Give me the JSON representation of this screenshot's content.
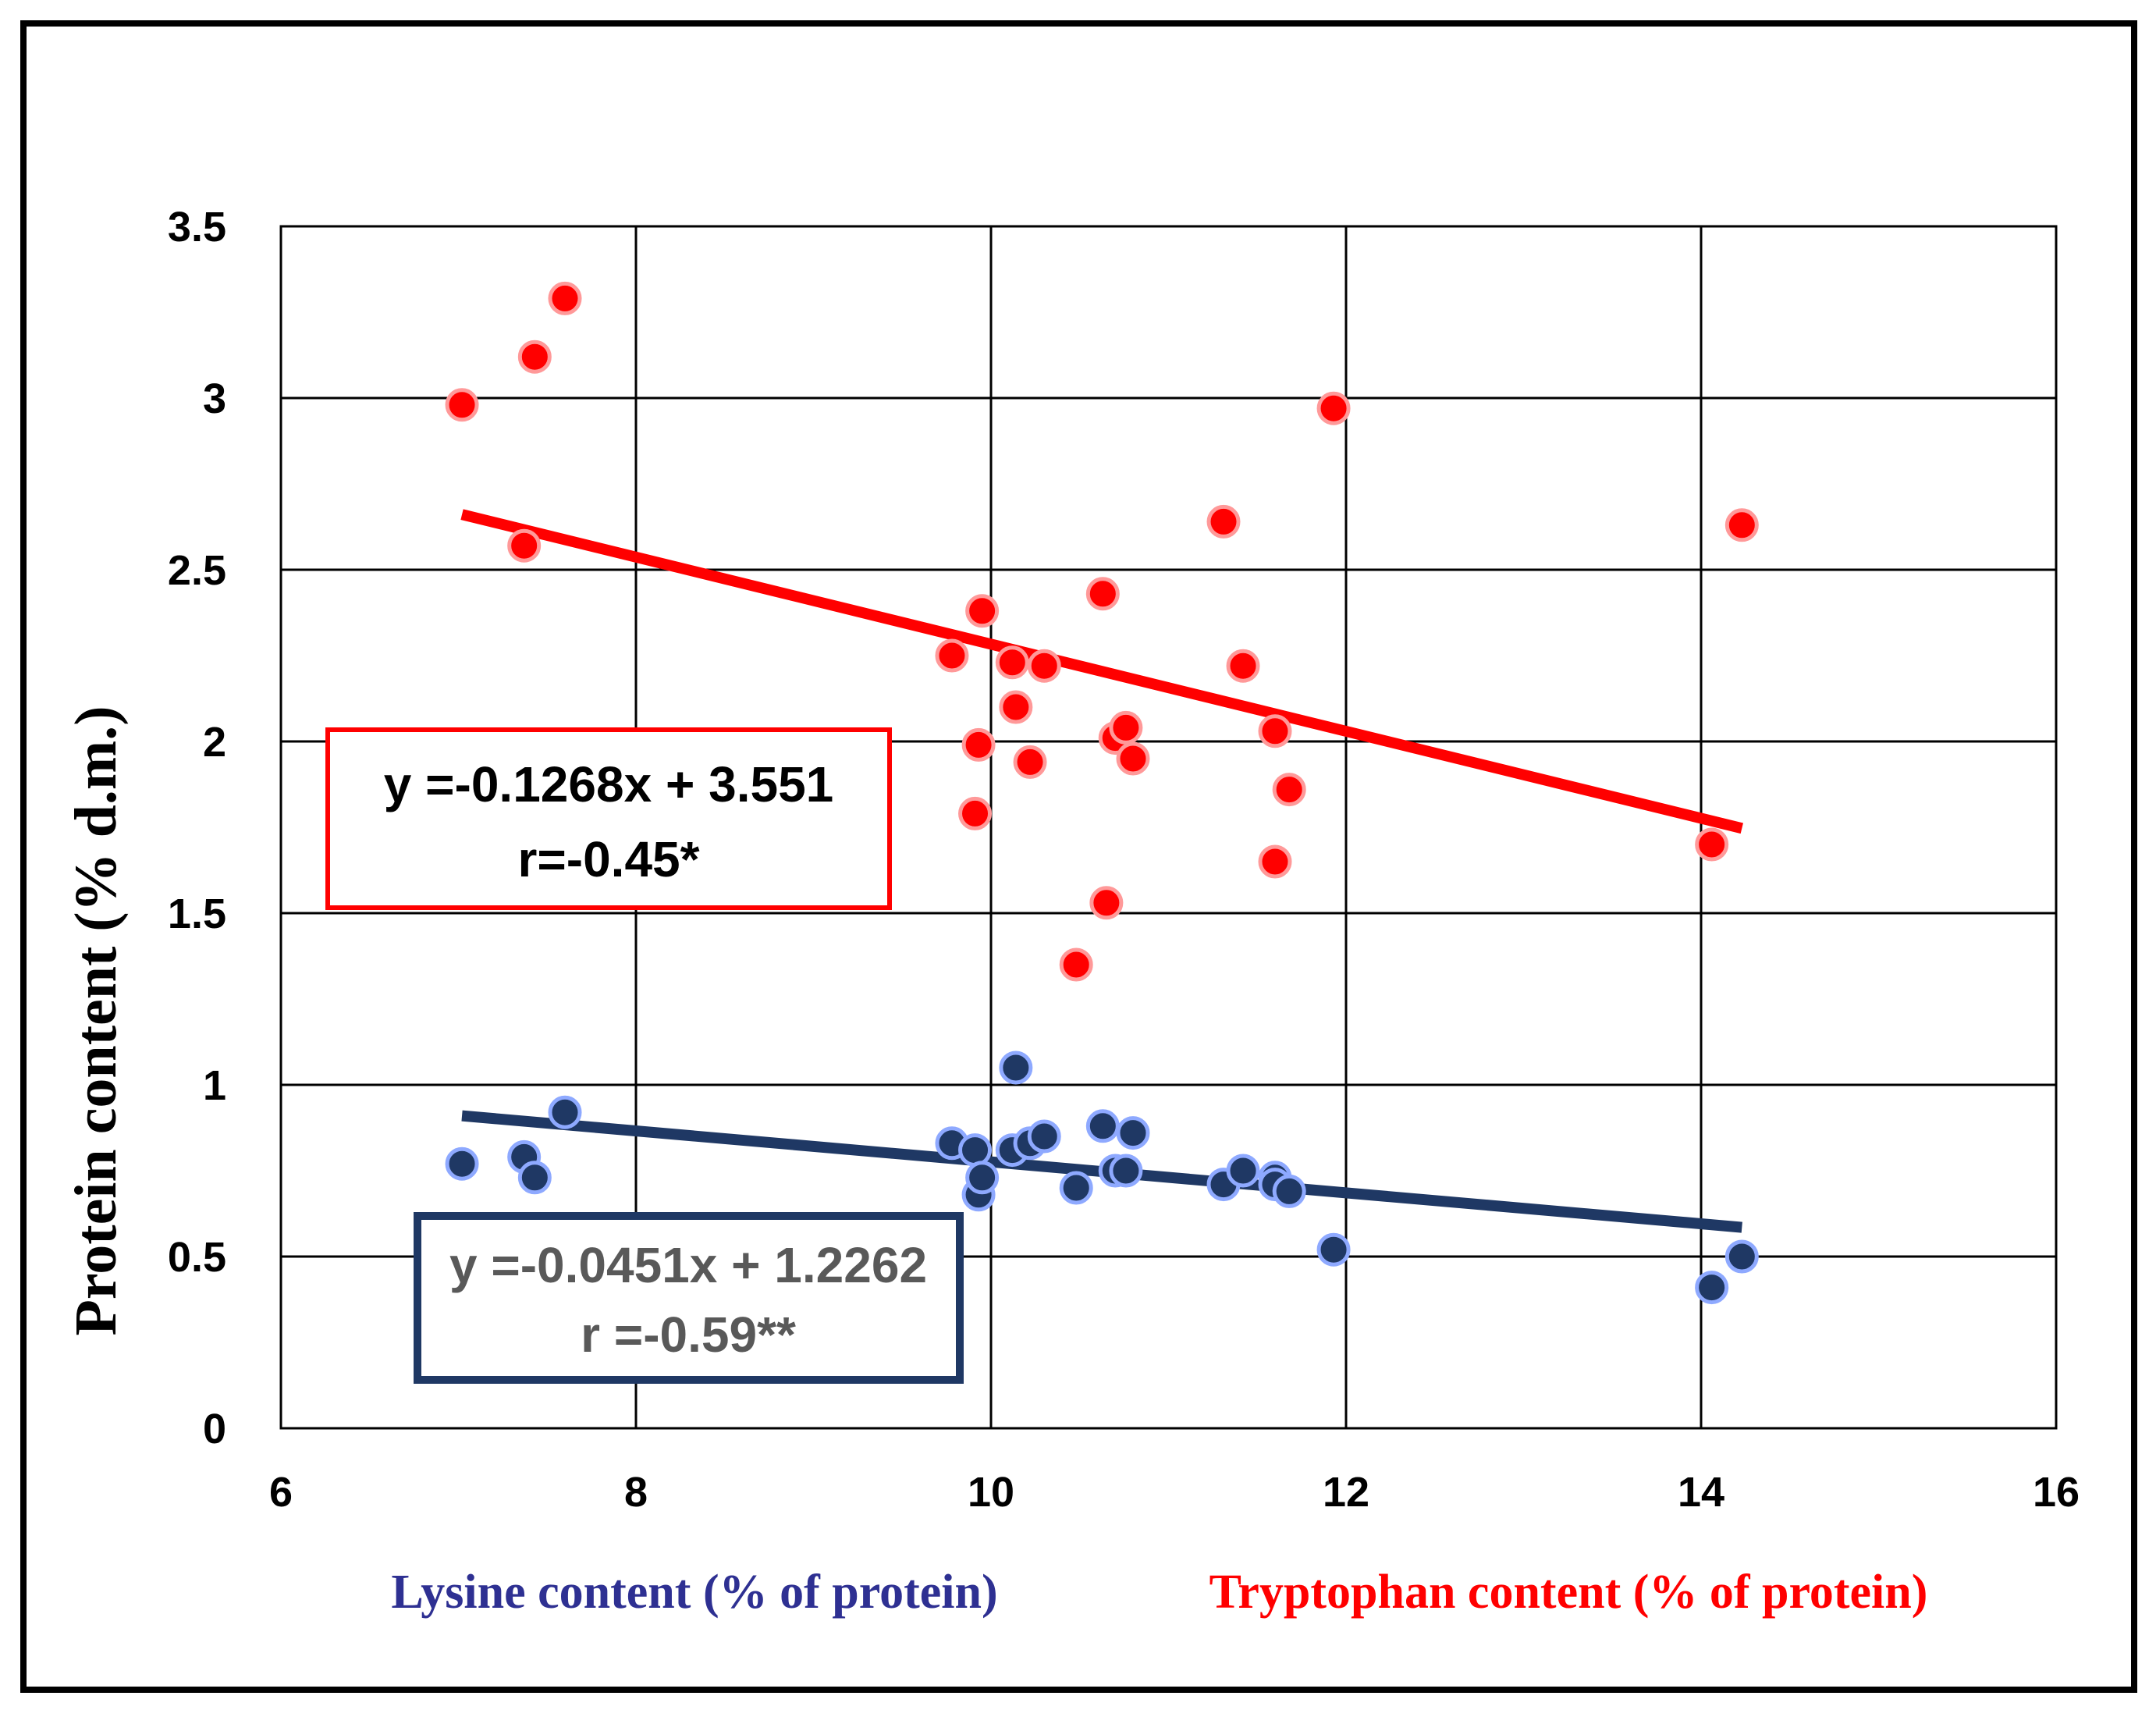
{
  "chart_data": {
    "type": "scatter",
    "ylabel": "Protein content (% d.m.)",
    "xlabels": [
      {
        "text": "Lysine content (% of protein)",
        "color": "#2e3092"
      },
      {
        "text": "Tryptophan content (% of protein)",
        "color": "#ff0000"
      }
    ],
    "xlim": [
      6,
      16
    ],
    "ylim": [
      0,
      3.5
    ],
    "x_ticks": [
      "6",
      "8",
      "10",
      "12",
      "14",
      "16"
    ],
    "y_ticks": [
      "0",
      "0.5",
      "1",
      "1.5",
      "2",
      "2.5",
      "3",
      "3.5"
    ],
    "grid": true,
    "series": [
      {
        "color": "#ff0000",
        "points": [
          [
            7.02,
            2.98
          ],
          [
            7.43,
            3.12
          ],
          [
            7.6,
            3.29
          ],
          [
            7.37,
            2.57
          ],
          [
            9.78,
            2.25
          ],
          [
            9.95,
            2.38
          ],
          [
            9.93,
            1.99
          ],
          [
            9.91,
            1.79
          ],
          [
            10.12,
            2.23
          ],
          [
            10.3,
            2.22
          ],
          [
            10.14,
            2.1
          ],
          [
            10.22,
            1.94
          ],
          [
            10.63,
            2.43
          ],
          [
            10.7,
            2.01
          ],
          [
            10.76,
            2.04
          ],
          [
            10.8,
            1.95
          ],
          [
            10.65,
            1.53
          ],
          [
            10.48,
            1.35
          ],
          [
            11.31,
            2.64
          ],
          [
            11.42,
            2.22
          ],
          [
            11.6,
            2.03
          ],
          [
            11.68,
            1.86
          ],
          [
            11.6,
            1.65
          ],
          [
            11.93,
            2.97
          ],
          [
            14.06,
            1.7
          ],
          [
            14.23,
            2.63
          ]
        ],
        "trendline": {
          "x": [
            7.02,
            14.23
          ],
          "y": [
            2.661,
            1.747
          ]
        },
        "equation": "y =-0.1268x + 3.551",
        "r": "r=-0.45*"
      },
      {
        "color": "#1f3864",
        "points": [
          [
            7.02,
            0.77
          ],
          [
            7.37,
            0.79
          ],
          [
            7.43,
            0.73
          ],
          [
            7.6,
            0.92
          ],
          [
            9.78,
            0.83
          ],
          [
            9.91,
            0.81
          ],
          [
            9.93,
            0.68
          ],
          [
            9.95,
            0.73
          ],
          [
            10.12,
            0.81
          ],
          [
            10.14,
            1.05
          ],
          [
            10.22,
            0.83
          ],
          [
            10.3,
            0.85
          ],
          [
            10.48,
            0.7
          ],
          [
            10.63,
            0.88
          ],
          [
            10.7,
            0.75
          ],
          [
            10.76,
            0.75
          ],
          [
            10.8,
            0.86
          ],
          [
            11.31,
            0.71
          ],
          [
            11.42,
            0.75
          ],
          [
            11.6,
            0.73
          ],
          [
            11.6,
            0.71
          ],
          [
            11.68,
            0.69
          ],
          [
            11.93,
            0.52
          ],
          [
            14.06,
            0.41
          ],
          [
            14.23,
            0.5
          ]
        ],
        "trendline": {
          "x": [
            7.02,
            14.23
          ],
          "y": [
            0.91,
            0.585
          ]
        },
        "equation": "y =-0.0451x + 1.2262",
        "r": "r =-0.59**"
      }
    ],
    "annotations": [
      {
        "series": 0,
        "border": "#ff0000",
        "text_color": "#000000"
      },
      {
        "series": 1,
        "border": "#1f3864",
        "text_color": "#595959"
      }
    ]
  }
}
